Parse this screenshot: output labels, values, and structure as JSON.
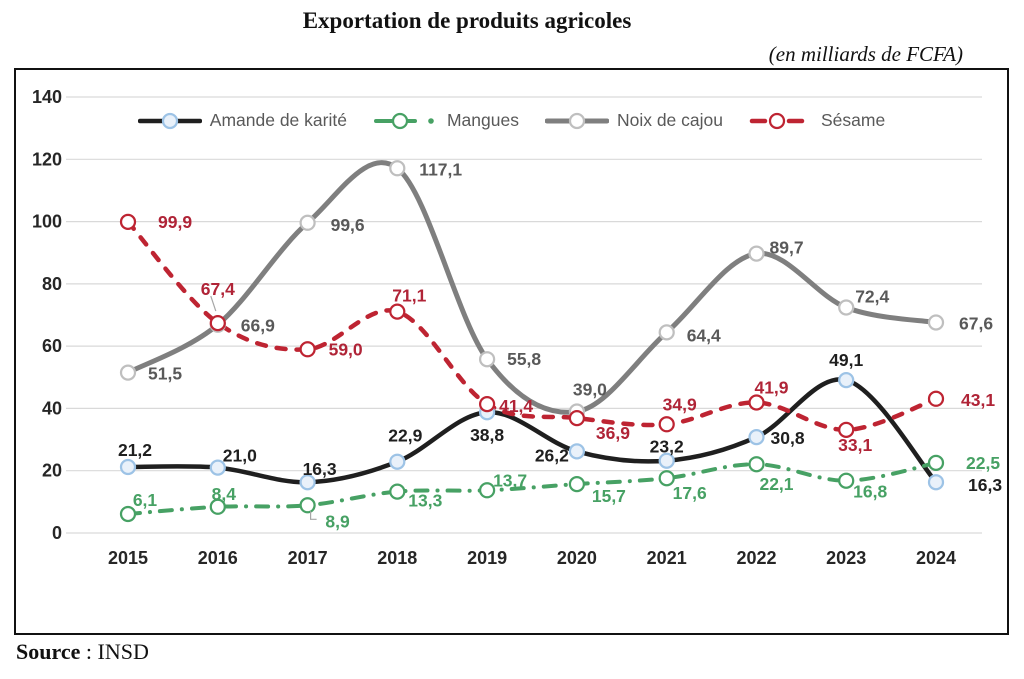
{
  "page": {
    "title": "Exportation de produits agricoles",
    "subtitle": "(en milliards de FCFA)",
    "source_label": "Source",
    "source_sep": " : ",
    "source_value": "INSD"
  },
  "chart_data": {
    "type": "line",
    "title": "Exportation de produits agricoles",
    "subtitle": "(en milliards de FCFA)",
    "xlabel": "",
    "ylabel": "",
    "unit": "milliards de FCFA",
    "categories": [
      "2015",
      "2016",
      "2017",
      "2018",
      "2019",
      "2020",
      "2021",
      "2022",
      "2023",
      "2024"
    ],
    "ylim": [
      0,
      140
    ],
    "y_ticks": [
      0,
      20,
      40,
      60,
      80,
      100,
      120,
      140
    ],
    "grid": true,
    "legend_position": "top-center",
    "colors": {
      "grid": "#D9D9D9",
      "axis_text": "#262626",
      "legend_text": "#595959",
      "leader": "#A6A6A6"
    },
    "series": [
      {
        "name": "Amande de karité",
        "type": "solid",
        "color": "#1F1F1F",
        "label_color": "#1F1F1F",
        "marker_stroke": "#9DC3E6",
        "marker_fill": "#E9F1FA",
        "width": 4.5,
        "values": [
          21.2,
          21.0,
          16.3,
          22.9,
          38.8,
          26.2,
          23.2,
          30.8,
          49.1,
          16.3
        ],
        "labels": [
          "21,2",
          "21,0",
          "16,3",
          "22,9",
          "38,8",
          "26,2",
          "23,2",
          "30,8",
          "49,1",
          "16,3"
        ],
        "label_offsets": [
          [
            7,
            -17,
            "m"
          ],
          [
            22,
            -12,
            "m"
          ],
          [
            12,
            -13,
            "m"
          ],
          [
            8,
            -26,
            "m"
          ],
          [
            0,
            23,
            "m"
          ],
          [
            -8,
            4,
            "e"
          ],
          [
            0,
            -14,
            "m"
          ],
          [
            14,
            1,
            "s"
          ],
          [
            0,
            -20,
            "m"
          ],
          [
            32,
            3,
            "s"
          ]
        ]
      },
      {
        "name": "Mangues",
        "type": "dashdot",
        "color": "#47A164",
        "label_color": "#47A164",
        "marker_stroke": "#47A164",
        "marker_fill": "#FFFFFF",
        "width": 4,
        "values": [
          6.1,
          8.4,
          8.9,
          13.3,
          13.7,
          15.7,
          17.6,
          22.1,
          16.8,
          22.5
        ],
        "labels": [
          "6,1",
          "8,4",
          "8,9",
          "13,3",
          "13,7",
          "15,7",
          "17,6",
          "22,1",
          "16,8",
          "22,5"
        ],
        "label_offsets": [
          [
            17,
            -14,
            "m"
          ],
          [
            6,
            -13,
            "m"
          ],
          [
            30,
            16,
            "m"
          ],
          [
            28,
            9,
            "m"
          ],
          [
            23,
            -10,
            "m"
          ],
          [
            32,
            12,
            "m"
          ],
          [
            23,
            15,
            "m"
          ],
          [
            20,
            20,
            "m"
          ],
          [
            24,
            11,
            "m"
          ],
          [
            30,
            0,
            "s"
          ]
        ],
        "leaders": {
          "2": [
            [
              3,
              6
            ],
            [
              3,
              14
            ],
            [
              9,
              14
            ]
          ]
        }
      },
      {
        "name": "Noix de cajou",
        "type": "solid",
        "color": "#7F7F7F",
        "label_color": "#595959",
        "marker_stroke": "#BFBFBF",
        "marker_fill": "#FFFFFF",
        "width": 5,
        "values": [
          51.5,
          66.9,
          99.6,
          117.1,
          55.8,
          39.0,
          64.4,
          89.7,
          72.4,
          67.6
        ],
        "labels": [
          "51,5",
          "66,9",
          "99,6",
          "117,1",
          "55,8",
          "39,0",
          "64,4",
          "89,7",
          "72,4",
          "67,6"
        ],
        "label_offsets": [
          [
            20,
            1,
            "s"
          ],
          [
            23,
            1,
            "s"
          ],
          [
            23,
            2,
            "s"
          ],
          [
            22,
            1,
            "s"
          ],
          [
            20,
            0,
            "s"
          ],
          [
            13,
            -22,
            "m"
          ],
          [
            20,
            3,
            "s"
          ],
          [
            13,
            -6,
            "s"
          ],
          [
            9,
            -11,
            "s"
          ],
          [
            23,
            1,
            "s"
          ]
        ]
      },
      {
        "name": "Sésame",
        "type": "dash",
        "color": "#BE2432",
        "label_color": "#B02437",
        "marker_stroke": "#BE2432",
        "marker_fill": "#FFFFFF",
        "width": 4.5,
        "values": [
          99.9,
          67.4,
          59.0,
          71.1,
          41.4,
          36.9,
          34.9,
          41.9,
          33.1,
          43.1
        ],
        "labels": [
          "99,9",
          "67,4",
          "59,0",
          "71,1",
          "41,4",
          "36,9",
          "34,9",
          "41,9",
          "33,1",
          "43,1"
        ],
        "label_offsets": [
          [
            30,
            0,
            "s"
          ],
          [
            0,
            -34,
            "m"
          ],
          [
            21,
            0,
            "s"
          ],
          [
            12,
            -16,
            "m"
          ],
          [
            12,
            2,
            "s"
          ],
          [
            19,
            15,
            "s"
          ],
          [
            13,
            -20,
            "m"
          ],
          [
            15,
            -15,
            "m"
          ],
          [
            9,
            15,
            "m"
          ],
          [
            25,
            1,
            "s"
          ]
        ],
        "leaders": {
          "1": [
            [
              -2,
              -12
            ],
            [
              -7,
              -27
            ]
          ]
        }
      }
    ]
  }
}
